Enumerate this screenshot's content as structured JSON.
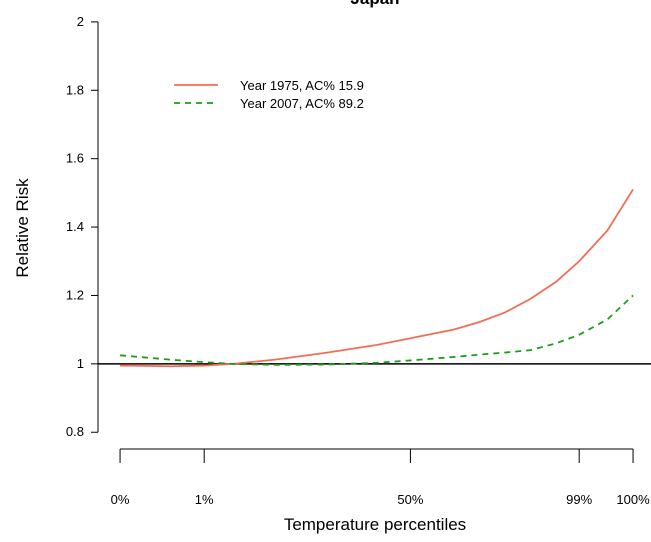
{
  "chart_data": {
    "type": "line",
    "title": "Japan",
    "x_label": "Temperature percentiles",
    "y_label": "Relative Risk",
    "x": [
      0,
      0.1,
      0.164,
      0.22,
      0.3,
      0.4,
      0.5,
      0.566,
      0.65,
      0.7,
      0.75,
      0.8,
      0.85,
      0.895,
      0.95,
      1.0
    ],
    "series": [
      {
        "name": "Year 1975, AC% 15.9",
        "color": "#f26d55",
        "dash": "solid",
        "values": [
          0.995,
          0.993,
          0.995,
          1.0,
          1.012,
          1.032,
          1.055,
          1.075,
          1.1,
          1.122,
          1.15,
          1.19,
          1.24,
          1.3,
          1.39,
          1.51
        ]
      },
      {
        "name": "Year 2007, AC% 89.2",
        "color": "#1a9e1a",
        "dash": "dashed",
        "values": [
          1.025,
          1.012,
          1.005,
          1.0,
          0.997,
          0.998,
          1.003,
          1.01,
          1.02,
          1.027,
          1.033,
          1.04,
          1.06,
          1.085,
          1.13,
          1.2
        ]
      }
    ],
    "xlim": [
      -0.043,
      1.035
    ],
    "xticks": [
      {
        "value": 0,
        "label": "0%"
      },
      {
        "value": 0.164,
        "label": "1%"
      },
      {
        "value": 0.566,
        "label": "50%"
      },
      {
        "value": 0.895,
        "label": "99%"
      },
      {
        "value": 1.0,
        "label": "100%"
      }
    ],
    "ylim": [
      0.751,
      2.064
    ],
    "yticks": [
      0.8,
      1.0,
      1.2,
      1.4,
      1.6,
      1.8,
      2.0
    ],
    "reference_line": 1.0,
    "legend_position": "upper left"
  }
}
